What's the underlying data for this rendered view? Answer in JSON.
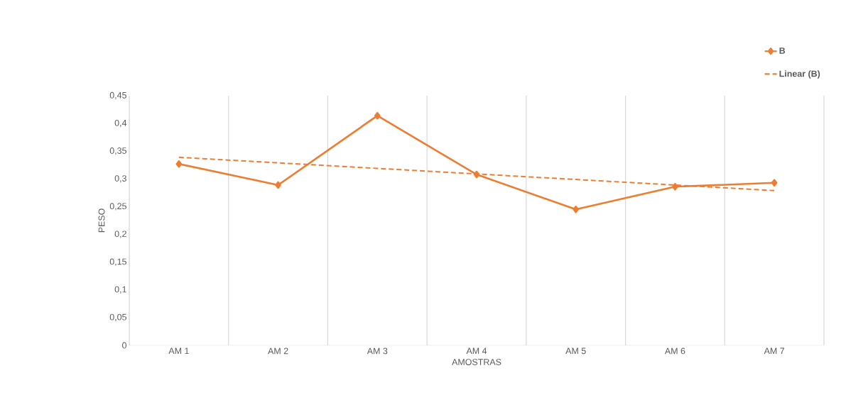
{
  "chart_data": {
    "type": "line",
    "xlabel": "AMOSTRAS",
    "ylabel": "PESO",
    "categories": [
      "AM 1",
      "AM 2",
      "AM 3",
      "AM 4",
      "AM 5",
      "AM 6",
      "AM 7"
    ],
    "series": [
      {
        "name": "B",
        "color": "#ed7d31",
        "marker": "diamond",
        "line_style": "solid",
        "values": [
          0.327,
          0.289,
          0.414,
          0.308,
          0.245,
          0.286,
          0.293
        ]
      },
      {
        "name": "Linear (B)",
        "type": "line",
        "color": "#ed7d31",
        "marker": "none",
        "line_style": "dashed",
        "values": [
          0.339,
          0.329,
          0.319,
          0.309,
          0.299,
          0.289,
          0.279
        ]
      }
    ],
    "ylim": [
      0,
      0.45
    ],
    "yticks": [
      {
        "value": 0,
        "label": "0"
      },
      {
        "value": 0.05,
        "label": "0,05"
      },
      {
        "value": 0.1,
        "label": "0,1"
      },
      {
        "value": 0.15,
        "label": "0,15"
      },
      {
        "value": 0.2,
        "label": "0,2"
      },
      {
        "value": 0.25,
        "label": "0,25"
      },
      {
        "value": 0.3,
        "label": "0,3"
      },
      {
        "value": 0.35,
        "label": "0,35"
      },
      {
        "value": 0.4,
        "label": "0,4"
      },
      {
        "value": 0.45,
        "label": "0,45"
      }
    ],
    "grid": "x",
    "legend": "top right"
  }
}
